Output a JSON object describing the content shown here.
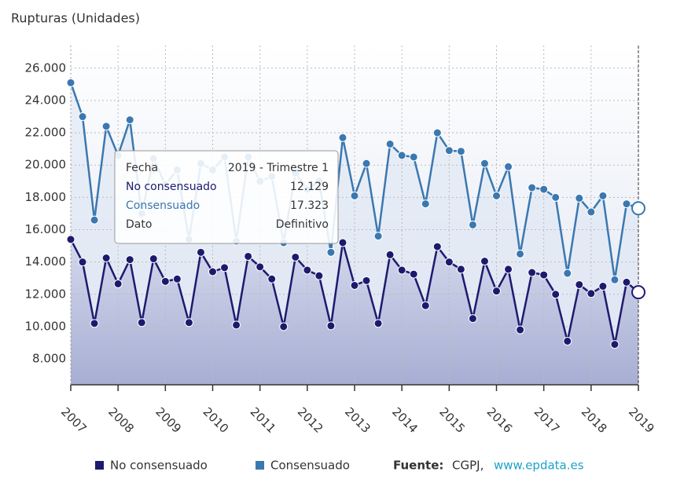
{
  "chart_data": {
    "type": "line",
    "y_axis_title": "Rupturas (Unidades)",
    "categories": [
      "2007",
      null,
      null,
      null,
      "2008",
      null,
      null,
      null,
      "2009",
      null,
      null,
      null,
      "2010",
      null,
      null,
      null,
      "2011",
      null,
      null,
      null,
      "2012",
      null,
      null,
      null,
      "2013",
      null,
      null,
      null,
      "2014",
      null,
      null,
      null,
      "2015",
      null,
      null,
      null,
      "2016",
      null,
      null,
      null,
      "2017",
      null,
      null,
      null,
      "2018",
      null,
      null,
      null,
      "2019"
    ],
    "series": [
      {
        "name": "No consensuado",
        "color": "#1d1a6e",
        "values": [
          15400,
          14000,
          10200,
          14250,
          12650,
          14150,
          10250,
          14200,
          12800,
          12950,
          10250,
          14600,
          13400,
          13650,
          10100,
          14350,
          13700,
          12950,
          10000,
          14300,
          13500,
          13150,
          10050,
          15200,
          12550,
          12850,
          10200,
          14450,
          13500,
          13250,
          11300,
          14950,
          14000,
          13550,
          10500,
          14050,
          12200,
          13550,
          9800,
          13350,
          13200,
          12000,
          9100,
          12600,
          12050,
          12500,
          8900,
          12750,
          12129
        ]
      },
      {
        "name": "Consensuado",
        "color": "#3b78b0",
        "values": [
          25100,
          23000,
          16600,
          22400,
          20600,
          22800,
          17000,
          20400,
          18800,
          19700,
          15400,
          20100,
          19700,
          20500,
          15300,
          20500,
          19000,
          19300,
          15200,
          19500,
          18500,
          19000,
          14600,
          21700,
          18100,
          20100,
          15600,
          21300,
          20600,
          20500,
          17600,
          22000,
          20900,
          20850,
          16300,
          20100,
          18100,
          19900,
          14500,
          18600,
          18500,
          18000,
          13300,
          17950,
          17100,
          18100,
          12900,
          17600,
          17323
        ]
      }
    ],
    "ylim": [
      6400,
      27400
    ],
    "yticks": [
      {
        "value": 8000,
        "label": "8.000"
      },
      {
        "value": 10000,
        "label": "10.000"
      },
      {
        "value": 12000,
        "label": "12.000"
      },
      {
        "value": 14000,
        "label": "14.000"
      },
      {
        "value": 16000,
        "label": "16.000"
      },
      {
        "value": 18000,
        "label": "18.000"
      },
      {
        "value": 20000,
        "label": "20.000"
      },
      {
        "value": 22000,
        "label": "22.000"
      },
      {
        "value": 24000,
        "label": "24.000"
      },
      {
        "value": 26000,
        "label": "26.000"
      }
    ],
    "grid": true,
    "tooltip": [
      [
        "Fecha",
        "2019 - Trimestre 1"
      ],
      [
        "No consensuado",
        "12.129"
      ],
      [
        "Consensuado",
        "17.323"
      ],
      [
        "Dato",
        "Definitivo"
      ]
    ],
    "source": {
      "label": "Fuente:",
      "text": "CGPJ,",
      "link": "www.epdata.es"
    }
  }
}
